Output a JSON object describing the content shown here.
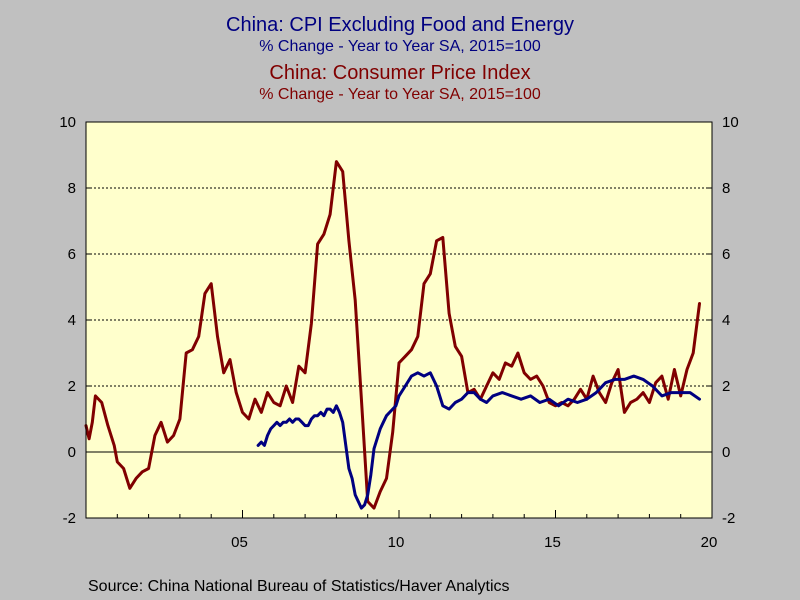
{
  "titles": [
    {
      "line1": "China: CPI Excluding Food and Energy",
      "line2": "% Change - Year to Year    SA, 2015=100",
      "color": "#000080"
    },
    {
      "line1": "China: Consumer Price Index",
      "line2": "% Change - Year to Year    SA, 2015=100",
      "color": "#800000"
    }
  ],
  "source": "Source:  China National Bureau of Statistics/Haver Analytics",
  "chart_data": {
    "type": "line",
    "xlim": [
      2000.0,
      2020.0
    ],
    "ylim": [
      -2,
      10
    ],
    "x_ticks": [
      {
        "value": 2005,
        "label": "05"
      },
      {
        "value": 2010,
        "label": "10"
      },
      {
        "value": 2015,
        "label": "15"
      },
      {
        "value": 2020,
        "label": "20"
      }
    ],
    "y_ticks": [
      -2,
      0,
      2,
      4,
      6,
      8,
      10
    ],
    "gridlines": [
      0,
      2,
      4,
      6,
      8
    ],
    "grid": true,
    "background": "#ffffcc",
    "series": [
      {
        "name": "China: CPI Excluding Food and Energy",
        "color": "#000080",
        "x": [
          2005.5,
          2005.6,
          2005.7,
          2005.8,
          2005.9,
          2006.0,
          2006.1,
          2006.2,
          2006.3,
          2006.4,
          2006.5,
          2006.6,
          2006.7,
          2006.8,
          2006.9,
          2007.0,
          2007.1,
          2007.2,
          2007.3,
          2007.4,
          2007.5,
          2007.6,
          2007.7,
          2007.8,
          2007.9,
          2008.0,
          2008.1,
          2008.2,
          2008.3,
          2008.4,
          2008.5,
          2008.6,
          2008.7,
          2008.8,
          2008.9,
          2009.0,
          2009.1,
          2009.2,
          2009.3,
          2009.4,
          2009.5,
          2009.6,
          2009.7,
          2009.8,
          2009.9,
          2010.0,
          2010.2,
          2010.4,
          2010.6,
          2010.8,
          2011.0,
          2011.2,
          2011.4,
          2011.6,
          2011.8,
          2012.0,
          2012.2,
          2012.4,
          2012.6,
          2012.8,
          2013.0,
          2013.3,
          2013.6,
          2013.9,
          2014.2,
          2014.5,
          2014.8,
          2015.1,
          2015.4,
          2015.7,
          2016.0,
          2016.3,
          2016.6,
          2016.9,
          2017.2,
          2017.5,
          2017.8,
          2018.1,
          2018.4,
          2018.7,
          2019.0,
          2019.3,
          2019.6
        ],
        "y": [
          0.2,
          0.3,
          0.2,
          0.5,
          0.7,
          0.8,
          0.9,
          0.8,
          0.9,
          0.9,
          1.0,
          0.9,
          1.0,
          1.0,
          0.9,
          0.8,
          0.8,
          1.0,
          1.1,
          1.1,
          1.2,
          1.1,
          1.3,
          1.3,
          1.2,
          1.4,
          1.2,
          0.9,
          0.2,
          -0.5,
          -0.8,
          -1.3,
          -1.5,
          -1.7,
          -1.6,
          -1.3,
          -0.7,
          0.1,
          0.4,
          0.7,
          0.9,
          1.1,
          1.2,
          1.3,
          1.4,
          1.7,
          2.0,
          2.3,
          2.4,
          2.3,
          2.4,
          2.0,
          1.4,
          1.3,
          1.5,
          1.6,
          1.8,
          1.8,
          1.6,
          1.5,
          1.7,
          1.8,
          1.7,
          1.6,
          1.7,
          1.5,
          1.6,
          1.4,
          1.6,
          1.5,
          1.6,
          1.8,
          2.1,
          2.2,
          2.2,
          2.3,
          2.2,
          2.0,
          1.7,
          1.8,
          1.8,
          1.8,
          1.6
        ]
      },
      {
        "name": "China: Consumer Price Index",
        "color": "#800000",
        "x": [
          2000.0,
          2000.1,
          2000.2,
          2000.3,
          2000.5,
          2000.7,
          2000.9,
          2001.0,
          2001.2,
          2001.4,
          2001.6,
          2001.8,
          2002.0,
          2002.2,
          2002.4,
          2002.6,
          2002.8,
          2003.0,
          2003.2,
          2003.4,
          2003.6,
          2003.8,
          2004.0,
          2004.2,
          2004.4,
          2004.6,
          2004.8,
          2005.0,
          2005.2,
          2005.4,
          2005.6,
          2005.8,
          2006.0,
          2006.2,
          2006.4,
          2006.6,
          2006.8,
          2007.0,
          2007.2,
          2007.4,
          2007.6,
          2007.8,
          2008.0,
          2008.2,
          2008.4,
          2008.6,
          2008.8,
          2009.0,
          2009.2,
          2009.4,
          2009.6,
          2009.8,
          2010.0,
          2010.2,
          2010.4,
          2010.6,
          2010.8,
          2011.0,
          2011.2,
          2011.4,
          2011.6,
          2011.8,
          2012.0,
          2012.2,
          2012.4,
          2012.6,
          2012.8,
          2013.0,
          2013.2,
          2013.4,
          2013.6,
          2013.8,
          2014.0,
          2014.2,
          2014.4,
          2014.6,
          2014.8,
          2015.0,
          2015.2,
          2015.4,
          2015.6,
          2015.8,
          2016.0,
          2016.2,
          2016.4,
          2016.6,
          2016.8,
          2017.0,
          2017.2,
          2017.4,
          2017.6,
          2017.8,
          2018.0,
          2018.2,
          2018.4,
          2018.6,
          2018.8,
          2019.0,
          2019.2,
          2019.4,
          2019.6
        ],
        "y": [
          0.8,
          0.4,
          0.9,
          1.7,
          1.5,
          0.8,
          0.2,
          -0.3,
          -0.5,
          -1.1,
          -0.8,
          -0.6,
          -0.5,
          0.5,
          0.9,
          0.3,
          0.5,
          1.0,
          3.0,
          3.1,
          3.5,
          4.8,
          5.1,
          3.5,
          2.4,
          2.8,
          1.8,
          1.2,
          1.0,
          1.6,
          1.2,
          1.8,
          1.5,
          1.4,
          2.0,
          1.5,
          2.6,
          2.4,
          3.9,
          6.3,
          6.6,
          7.2,
          8.8,
          8.5,
          6.4,
          4.6,
          1.6,
          -1.5,
          -1.7,
          -1.2,
          -0.8,
          0.6,
          2.7,
          2.9,
          3.1,
          3.5,
          5.1,
          5.4,
          6.4,
          6.5,
          4.2,
          3.2,
          2.9,
          1.8,
          1.9,
          1.6,
          2.0,
          2.4,
          2.2,
          2.7,
          2.6,
          3.0,
          2.4,
          2.2,
          2.3,
          2.0,
          1.5,
          1.4,
          1.5,
          1.4,
          1.6,
          1.9,
          1.6,
          2.3,
          1.8,
          1.5,
          2.1,
          2.5,
          1.2,
          1.5,
          1.6,
          1.8,
          1.5,
          2.1,
          2.3,
          1.6,
          2.5,
          1.7,
          2.5,
          3.0,
          4.5
        ]
      }
    ]
  }
}
